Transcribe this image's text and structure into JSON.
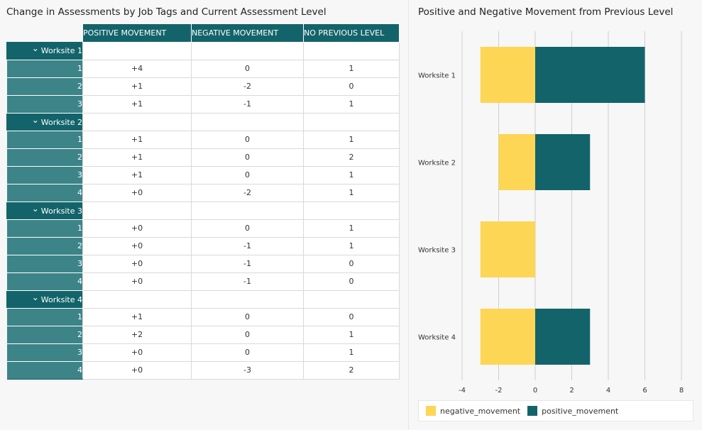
{
  "table": {
    "title": "Change in Assessments by Job Tags and Current Assessment Level",
    "columns": [
      "POSITIVE MOVEMENT",
      "NEGATIVE MOVEMENT",
      "NO PREVIOUS LEVEL"
    ],
    "groups": [
      {
        "label": "Worksite 1",
        "rows": [
          {
            "level": "1",
            "positive": "+4",
            "negative": "0",
            "no_previous": "1"
          },
          {
            "level": "2",
            "positive": "+1",
            "negative": "-2",
            "no_previous": "0"
          },
          {
            "level": "3",
            "positive": "+1",
            "negative": "-1",
            "no_previous": "1"
          }
        ]
      },
      {
        "label": "Worksite 2",
        "rows": [
          {
            "level": "1",
            "positive": "+1",
            "negative": "0",
            "no_previous": "1"
          },
          {
            "level": "2",
            "positive": "+1",
            "negative": "0",
            "no_previous": "2"
          },
          {
            "level": "3",
            "positive": "+1",
            "negative": "0",
            "no_previous": "1"
          },
          {
            "level": "4",
            "positive": "+0",
            "negative": "-2",
            "no_previous": "1"
          }
        ]
      },
      {
        "label": "Worksite 3",
        "rows": [
          {
            "level": "1",
            "positive": "+0",
            "negative": "0",
            "no_previous": "1"
          },
          {
            "level": "2",
            "positive": "+0",
            "negative": "-1",
            "no_previous": "1"
          },
          {
            "level": "3",
            "positive": "+0",
            "negative": "-1",
            "no_previous": "0"
          },
          {
            "level": "4",
            "positive": "+0",
            "negative": "-1",
            "no_previous": "0"
          }
        ]
      },
      {
        "label": "Worksite 4",
        "rows": [
          {
            "level": "1",
            "positive": "+1",
            "negative": "0",
            "no_previous": "0"
          },
          {
            "level": "2",
            "positive": "+2",
            "negative": "0",
            "no_previous": "1"
          },
          {
            "level": "3",
            "positive": "+0",
            "negative": "0",
            "no_previous": "1"
          },
          {
            "level": "4",
            "positive": "+0",
            "negative": "-3",
            "no_previous": "2"
          }
        ]
      }
    ]
  },
  "chart_data": {
    "type": "bar",
    "orientation": "horizontal",
    "stacked": true,
    "title": "Positive and Negative Movement from Previous Level",
    "categories": [
      "Worksite 1",
      "Worksite 2",
      "Worksite 3",
      "Worksite 4"
    ],
    "series": [
      {
        "name": "negative_movement",
        "color": "#fdd655",
        "values": [
          -3,
          -2,
          -3,
          -3
        ]
      },
      {
        "name": "positive_movement",
        "color": "#13646a",
        "values": [
          6,
          3,
          0,
          3
        ]
      }
    ],
    "xlim": [
      -4,
      8
    ],
    "xticks": [
      -4,
      -2,
      0,
      2,
      4,
      6,
      8
    ],
    "grid": "vertical",
    "legend": "bottom"
  }
}
